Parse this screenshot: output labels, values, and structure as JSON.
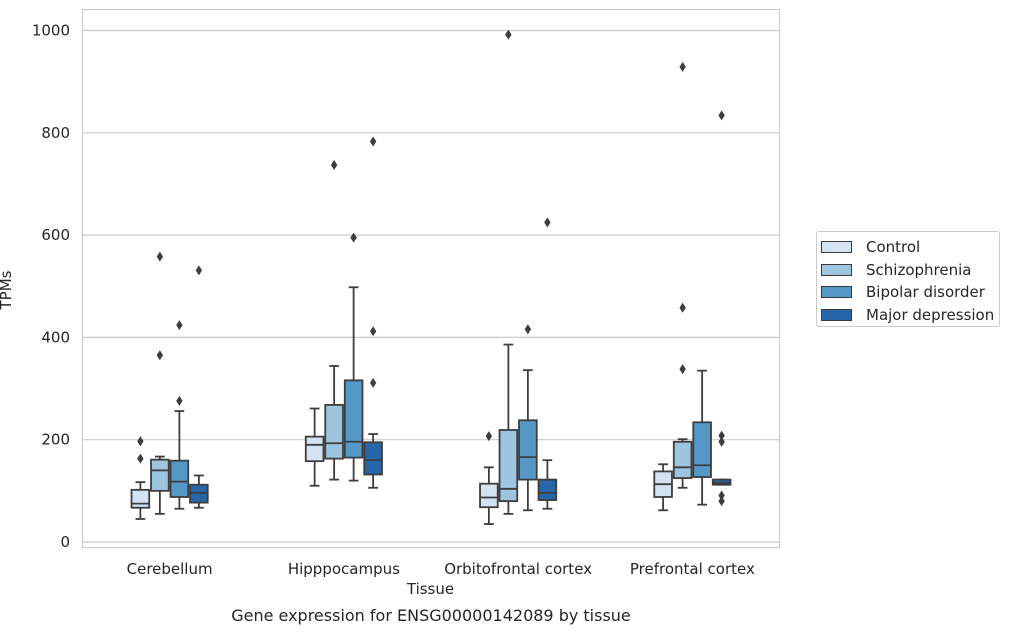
{
  "chart_data": {
    "type": "box",
    "title": "",
    "caption": "Gene expression for ENSG00000142089 by tissue",
    "xlabel": "Tissue",
    "ylabel": "TPMs",
    "ylim": [
      -10,
      1040
    ],
    "yticks": [
      0,
      200,
      400,
      600,
      800,
      1000
    ],
    "grid": true,
    "legend_position": "right",
    "categories": [
      "Cerebellum",
      "Hipppocampus",
      "Orbitofrontal cortex",
      "Prefrontal cortex"
    ],
    "series": [
      {
        "name": "Control",
        "color": "#d3e3f2",
        "boxes": [
          {
            "q1": 67,
            "median": 75,
            "q3": 102,
            "whisker_low": 45,
            "whisker_high": 117,
            "outliers": [
              163,
              197
            ]
          },
          {
            "q1": 158,
            "median": 190,
            "q3": 206,
            "whisker_low": 110,
            "whisker_high": 261,
            "outliers": []
          },
          {
            "q1": 68,
            "median": 87,
            "q3": 114,
            "whisker_low": 35,
            "whisker_high": 146,
            "outliers": [
              207
            ]
          },
          {
            "q1": 88,
            "median": 113,
            "q3": 138,
            "whisker_low": 62,
            "whisker_high": 152,
            "outliers": []
          }
        ]
      },
      {
        "name": "Schizophrenia",
        "color": "#9dc5e0",
        "boxes": [
          {
            "q1": 100,
            "median": 140,
            "q3": 161,
            "whisker_low": 55,
            "whisker_high": 167,
            "outliers": [
              365,
              558
            ]
          },
          {
            "q1": 163,
            "median": 193,
            "q3": 268,
            "whisker_low": 122,
            "whisker_high": 344,
            "outliers": [
              737
            ]
          },
          {
            "q1": 80,
            "median": 104,
            "q3": 219,
            "whisker_low": 55,
            "whisker_high": 386,
            "outliers": [
              992
            ]
          },
          {
            "q1": 125,
            "median": 146,
            "q3": 196,
            "whisker_low": 106,
            "whisker_high": 201,
            "outliers": [
              338,
              458,
              929
            ]
          }
        ]
      },
      {
        "name": "Bipolar disorder",
        "color": "#5597c7",
        "boxes": [
          {
            "q1": 88,
            "median": 118,
            "q3": 159,
            "whisker_low": 65,
            "whisker_high": 256,
            "outliers": [
              276,
              424
            ]
          },
          {
            "q1": 165,
            "median": 196,
            "q3": 316,
            "whisker_low": 120,
            "whisker_high": 498,
            "outliers": [
              595
            ]
          },
          {
            "q1": 122,
            "median": 166,
            "q3": 238,
            "whisker_low": 62,
            "whisker_high": 336,
            "outliers": [
              416
            ]
          },
          {
            "q1": 127,
            "median": 150,
            "q3": 234,
            "whisker_low": 73,
            "whisker_high": 335,
            "outliers": []
          }
        ]
      },
      {
        "name": "Major depression",
        "color": "#2666a9",
        "boxes": [
          {
            "q1": 77,
            "median": 96,
            "q3": 112,
            "whisker_low": 67,
            "whisker_high": 130,
            "outliers": [
              531
            ]
          },
          {
            "q1": 132,
            "median": 160,
            "q3": 195,
            "whisker_low": 106,
            "whisker_high": 211,
            "outliers": [
              311,
              412,
              783
            ]
          },
          {
            "q1": 82,
            "median": 96,
            "q3": 122,
            "whisker_low": 65,
            "whisker_high": 160,
            "outliers": [
              625
            ]
          },
          {
            "q1": 112,
            "median": 115,
            "q3": 122,
            "whisker_low": 112,
            "whisker_high": 122,
            "outliers": [
              80,
              91,
              196,
              208,
              834
            ]
          }
        ]
      }
    ]
  }
}
